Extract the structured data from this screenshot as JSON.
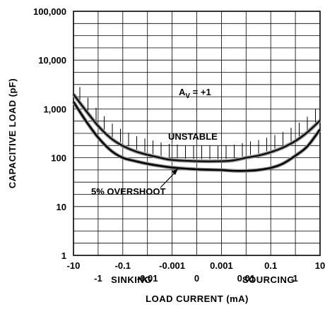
{
  "chart_data": {
    "type": "line",
    "title": "",
    "xlabel": "LOAD CURRENT (mA)",
    "ylabel": "CAPACITIVE LOAD (pF)",
    "x_scale": "symmetric-log",
    "y_scale": "log",
    "ylim": [
      1,
      100000
    ],
    "xlim": [
      -10,
      10
    ],
    "x_ticks_upper": [
      "-10",
      "-0.1",
      "-0.001",
      "0.001",
      "0.1",
      "10"
    ],
    "x_ticks_lower": [
      "-1",
      "-0.01",
      "0",
      "0.01",
      "1"
    ],
    "y_ticks": [
      "100,000",
      "10,000",
      "1,000",
      "100",
      "10",
      "1"
    ],
    "region_labels": {
      "left": "SINKING",
      "right": "SOURCING"
    },
    "grid": true,
    "annotations": {
      "gain_main": "A",
      "gain_sub": "V",
      "gain_value": " = +1",
      "unstable": "UNSTABLE",
      "overshoot": "5% OVERSHOOT"
    },
    "series": [
      {
        "x": [
          "-10",
          "-3",
          "-1",
          "-0.3",
          "-0.1",
          "-0.03",
          "-0.01",
          "-0.003",
          "-0.001",
          "0",
          "0.001",
          "0.003",
          "0.01",
          "0.03",
          "0.1",
          "0.3",
          "1",
          "3",
          "10"
        ],
        "values": [
          2000,
          900,
          450,
          250,
          175,
          135,
          115,
          100,
          90,
          85,
          85,
          88,
          100,
          110,
          130,
          160,
          220,
          330,
          580
        ]
      },
      {
        "x": [
          "-10",
          "-3",
          "-1",
          "-0.3",
          "-0.1",
          "-0.03",
          "-0.01",
          "-0.003",
          "-0.001",
          "0",
          "0.001",
          "0.003",
          "0.01",
          "0.03",
          "0.1",
          "0.3",
          "1",
          "3",
          "10"
        ],
        "values": [
          1400,
          550,
          260,
          140,
          100,
          85,
          75,
          68,
          63,
          58,
          56,
          54,
          54,
          56,
          62,
          75,
          110,
          170,
          380
        ]
      }
    ]
  }
}
